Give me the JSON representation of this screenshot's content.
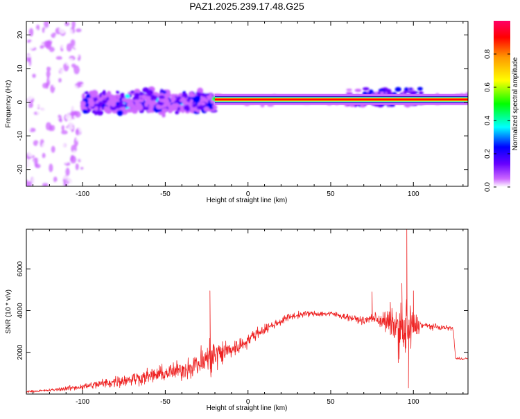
{
  "title": "PAZ1.2025.239.17.48.G25",
  "chart_data": [
    {
      "type": "heatmap",
      "xlabel": "Height of straight line (km)",
      "ylabel": "Frequency (Hz)",
      "xlim": [
        -134,
        133
      ],
      "ylim": [
        -25,
        24
      ],
      "x_ticks": [
        -100,
        -50,
        0,
        50,
        100
      ],
      "y_ticks": [
        -20,
        -10,
        0,
        10,
        20
      ],
      "colorbar": {
        "label": "Normalized spectral amplitude",
        "range": [
          0,
          1
        ],
        "ticks": [
          0.0,
          0.2,
          0.4,
          0.6,
          0.8
        ],
        "colors": [
          "#ffffff",
          "#cc66ff",
          "#6600ff",
          "#0000ff",
          "#00ffff",
          "#00ff00",
          "#ffff00",
          "#ff9900",
          "#ff0000",
          "#ff0066"
        ]
      },
      "features": [
        {
          "label": "noise region",
          "x_range": [
            -134,
            -100
          ],
          "y_range": [
            -25,
            24
          ],
          "amplitude": 0.15
        },
        {
          "label": "turbulent band",
          "x_range": [
            -100,
            -20
          ],
          "y_range": [
            -8,
            6
          ],
          "amplitude": 0.35
        },
        {
          "label": "steady carrier",
          "x_range": [
            -20,
            133
          ],
          "y_center": 0.8,
          "amplitude": 0.95
        },
        {
          "label": "bump",
          "x_range": [
            60,
            105
          ],
          "y_range": [
            -1,
            4
          ],
          "amplitude": 0.4
        }
      ]
    },
    {
      "type": "line",
      "xlabel": "Height of straight line (km)",
      "ylabel": "SNR (10 * v/v)",
      "xlim": [
        -134,
        133
      ],
      "ylim": [
        0,
        7900
      ],
      "x_ticks": [
        -100,
        -50,
        0,
        50,
        100
      ],
      "y_ticks": [
        2000,
        4000,
        6000
      ],
      "color": "#ee2222",
      "envelope": [
        {
          "x": -134,
          "mean": 120,
          "amp": 60
        },
        {
          "x": -120,
          "mean": 180,
          "amp": 100
        },
        {
          "x": -100,
          "mean": 350,
          "amp": 220
        },
        {
          "x": -80,
          "mean": 600,
          "amp": 420
        },
        {
          "x": -60,
          "mean": 850,
          "amp": 520
        },
        {
          "x": -40,
          "mean": 1150,
          "amp": 650
        },
        {
          "x": -30,
          "mean": 1450,
          "amp": 900
        },
        {
          "x": -22,
          "mean": 1800,
          "amp": 1500
        },
        {
          "x": -15,
          "mean": 2000,
          "amp": 900
        },
        {
          "x": -5,
          "mean": 2300,
          "amp": 550
        },
        {
          "x": 5,
          "mean": 2900,
          "amp": 400
        },
        {
          "x": 15,
          "mean": 3300,
          "amp": 300
        },
        {
          "x": 25,
          "mean": 3700,
          "amp": 250
        },
        {
          "x": 35,
          "mean": 3850,
          "amp": 200
        },
        {
          "x": 50,
          "mean": 3850,
          "amp": 200
        },
        {
          "x": 60,
          "mean": 3700,
          "amp": 220
        },
        {
          "x": 70,
          "mean": 3500,
          "amp": 250
        },
        {
          "x": 75,
          "mean": 3650,
          "amp": 350
        },
        {
          "x": 82,
          "mean": 3500,
          "amp": 700
        },
        {
          "x": 88,
          "mean": 3300,
          "amp": 1100
        },
        {
          "x": 93,
          "mean": 3000,
          "amp": 2200
        },
        {
          "x": 96,
          "mean": 3000,
          "amp": 2500
        },
        {
          "x": 100,
          "mean": 3200,
          "amp": 1200
        },
        {
          "x": 105,
          "mean": 3300,
          "amp": 250
        },
        {
          "x": 115,
          "mean": 3200,
          "amp": 180
        },
        {
          "x": 124,
          "mean": 3150,
          "amp": 150
        },
        {
          "x": 125.5,
          "mean": 1700,
          "amp": 100
        },
        {
          "x": 133,
          "mean": 1700,
          "amp": 80
        }
      ],
      "peaks": [
        {
          "x": -23,
          "y": 4950
        },
        {
          "x": 75,
          "y": 4900
        },
        {
          "x": 86,
          "y": 4400
        },
        {
          "x": 93,
          "y": 5300
        },
        {
          "x": 96,
          "y": 7900
        },
        {
          "x": 97,
          "y": 300
        },
        {
          "x": 100,
          "y": 4950
        }
      ]
    }
  ]
}
